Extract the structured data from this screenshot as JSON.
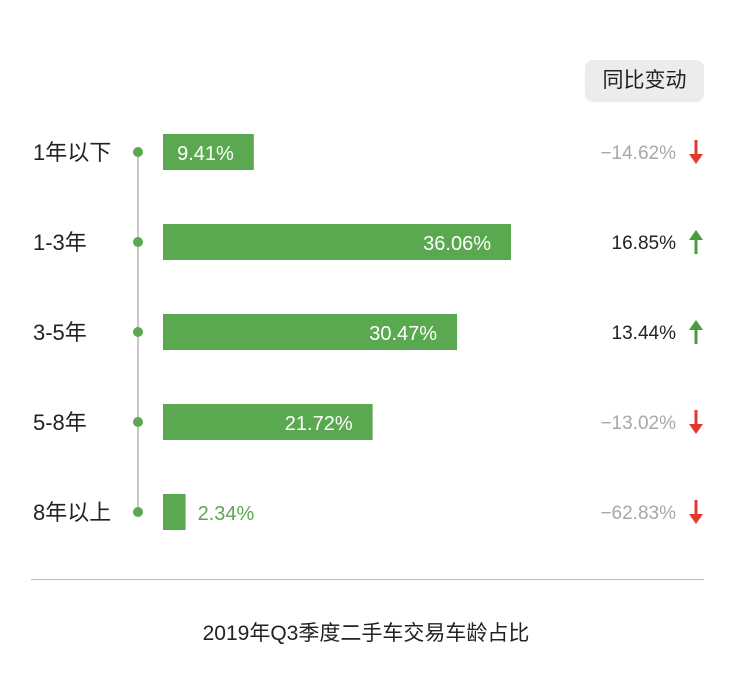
{
  "chart_data": {
    "type": "bar",
    "orientation": "horizontal",
    "title": "2019年Q3季度二手车交易车龄占比",
    "change_header": "同比变动",
    "categories": [
      "1年以下",
      "1-3年",
      "3-5年",
      "5-8年",
      "8年以上"
    ],
    "values": [
      9.41,
      36.06,
      30.47,
      21.72,
      2.34
    ],
    "value_labels": [
      "9.41%",
      "36.06%",
      "30.47%",
      "21.72%",
      "2.34%"
    ],
    "yoy_change": [
      -14.62,
      16.85,
      13.44,
      -13.02,
      -62.83
    ],
    "yoy_labels": [
      "−14.62%",
      "16.85%",
      "13.44%",
      "−13.02%",
      "−62.83%"
    ],
    "colors": {
      "bar": "#5aa84f",
      "increase": "#4a9a3e",
      "decrease": "#e03a2e",
      "negative_text": "#a8a8a8",
      "positive_text": "#222222"
    }
  }
}
